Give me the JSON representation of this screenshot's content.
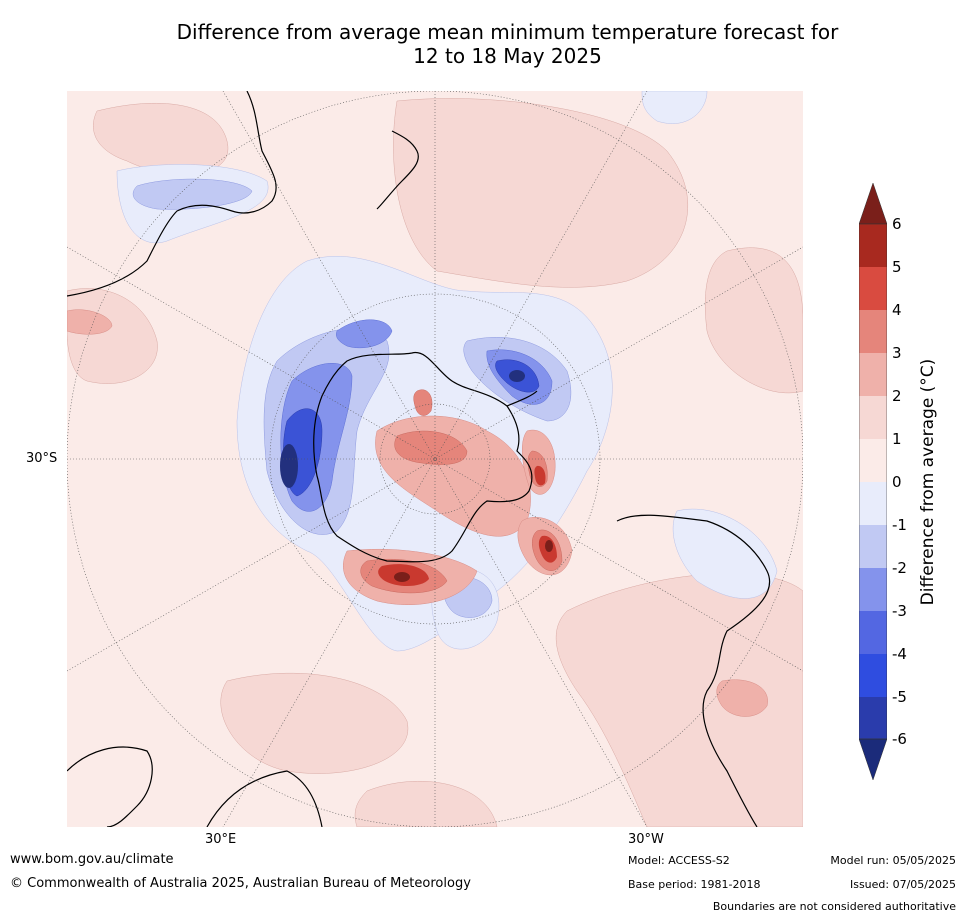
{
  "title": {
    "line1": "Difference from average mean minimum temperature forecast for",
    "line2": "12 to 18 May 2025"
  },
  "map": {
    "projection": "south-polar stereographic",
    "lat_label": "30°S",
    "lon_labels": {
      "east": "30°E",
      "west": "30°W"
    },
    "features": [
      "cold-anomaly-antarctic-indian-sector",
      "cold-anomaly-amundsen-sea",
      "cold-anomaly-weddell-sea",
      "warm-anomaly-east-antarctic-coast",
      "warm-anomaly-ross-sea",
      "warm-anomaly-antarctic-peninsula"
    ]
  },
  "colorbar": {
    "label": "Difference from average (°C)",
    "ticks": [
      "6",
      "5",
      "4",
      "3",
      "2",
      "1",
      "0",
      "-1",
      "-2",
      "-3",
      "-4",
      "-5",
      "-6"
    ],
    "colors": {
      "max_ext": "#7a1f1a",
      "c6": "#a8291f",
      "c5": "#d94b40",
      "c4": "#e5857b",
      "c3": "#efb1aa",
      "c2": "#f6d8d4",
      "c1": "#fbebe8",
      "c0": "#e8ecfb",
      "cm1": "#c1c9f3",
      "cm2": "#8493ec",
      "cm3": "#5367e2",
      "cm4": "#2f4de0",
      "cm5": "#2a3cac",
      "min_ext": "#1b2b7a"
    }
  },
  "footer": {
    "url": "www.bom.gov.au/climate",
    "copyright": "© Commonwealth of Australia 2025, Australian Bureau of Meteorology",
    "model": "Model: ACCESS-S2",
    "base_period": "Base period: 1981-2018",
    "model_run": "Model run: 05/05/2025",
    "issued": "Issued: 07/05/2025",
    "disclaimer": "Boundaries are not considered authoritative"
  }
}
